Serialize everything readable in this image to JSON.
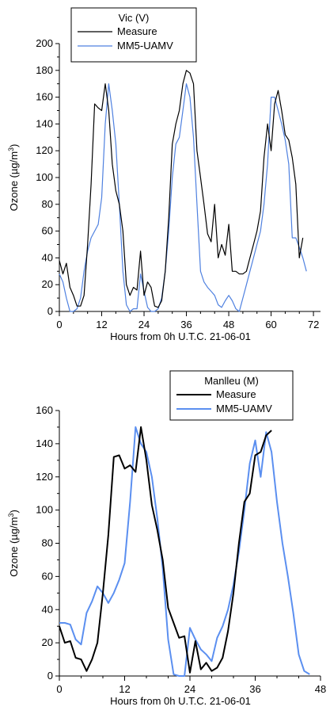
{
  "chart_data": [
    {
      "type": "line",
      "legend_title": "Vic (V)",
      "legend_position": "top-left",
      "xlabel": "Hours from 0h U.T.C. 21-06-01",
      "ylabel": "Ozone (µg/m³)",
      "ylabel_base": "Ozone (µg/m",
      "ylabel_sup": "3",
      "ylabel_end": ")",
      "xlim": [
        0,
        74
      ],
      "ylim": [
        0,
        200
      ],
      "xticks": [
        0,
        12,
        24,
        36,
        48,
        60,
        72
      ],
      "yticks": [
        0,
        20,
        40,
        60,
        80,
        100,
        120,
        140,
        160,
        180,
        200
      ],
      "series": [
        {
          "name": "Measure",
          "color": "#000000",
          "x": [
            0,
            1,
            2,
            3,
            4,
            5,
            6,
            7,
            8,
            9,
            10,
            11,
            12,
            13,
            14,
            15,
            16,
            17,
            18,
            19,
            20,
            21,
            22,
            23,
            24,
            25,
            26,
            27,
            28,
            29,
            30,
            31,
            32,
            33,
            34,
            35,
            36,
            37,
            38,
            39,
            40,
            41,
            42,
            43,
            44,
            45,
            46,
            47,
            48,
            49,
            50,
            51,
            52,
            53,
            54,
            55,
            56,
            57,
            58,
            59,
            60,
            61,
            62,
            63,
            64,
            65,
            66,
            67,
            68,
            69,
            70
          ],
          "y": [
            38,
            28,
            36,
            18,
            12,
            4,
            4,
            12,
            50,
            95,
            155,
            152,
            150,
            170,
            150,
            110,
            90,
            80,
            60,
            20,
            12,
            18,
            16,
            45,
            12,
            22,
            18,
            4,
            3,
            8,
            30,
            70,
            125,
            140,
            150,
            170,
            180,
            178,
            170,
            120,
            100,
            80,
            58,
            52,
            80,
            40,
            50,
            42,
            65,
            30,
            30,
            28,
            28,
            30,
            40,
            50,
            60,
            75,
            115,
            140,
            120,
            155,
            165,
            150,
            132,
            128,
            115,
            95,
            40,
            55,
            null
          ]
        },
        {
          "name": "MM5-UAMV",
          "color": "#4f81e0",
          "x": [
            0,
            1,
            2,
            3,
            4,
            5,
            6,
            7,
            8,
            9,
            10,
            11,
            12,
            13,
            14,
            15,
            16,
            17,
            18,
            19,
            20,
            21,
            22,
            23,
            24,
            25,
            26,
            27,
            28,
            29,
            30,
            31,
            32,
            33,
            34,
            35,
            36,
            37,
            38,
            39,
            40,
            41,
            42,
            43,
            44,
            45,
            46,
            47,
            48,
            49,
            50,
            51,
            52,
            53,
            54,
            55,
            56,
            57,
            58,
            59,
            60,
            61,
            62,
            63,
            64,
            65,
            66,
            67,
            68,
            69,
            70,
            71
          ],
          "y": [
            28,
            22,
            10,
            0,
            0,
            2,
            10,
            30,
            45,
            55,
            60,
            65,
            85,
            140,
            170,
            150,
            125,
            80,
            30,
            5,
            0,
            2,
            2,
            28,
            15,
            3,
            0,
            0,
            2,
            10,
            30,
            60,
            100,
            125,
            130,
            150,
            170,
            160,
            130,
            80,
            30,
            22,
            18,
            15,
            12,
            5,
            3,
            8,
            12,
            8,
            2,
            0,
            10,
            20,
            30,
            40,
            50,
            60,
            80,
            110,
            160,
            160,
            150,
            140,
            128,
            110,
            55,
            55,
            48,
            40,
            30,
            null
          ]
        }
      ]
    },
    {
      "type": "line",
      "legend_title": "Manlleu (M)",
      "legend_position": "top-right",
      "xlabel": "Hours from 0h U.T.C. 21-06-01",
      "ylabel": "Ozone (µg/m³)",
      "ylabel_base": "Ozone (µg/m",
      "ylabel_sup": "3",
      "ylabel_end": ")",
      "xlim": [
        0,
        48
      ],
      "ylim": [
        0,
        160
      ],
      "xticks": [
        0,
        12,
        24,
        36,
        48
      ],
      "yticks": [
        0,
        20,
        40,
        60,
        80,
        100,
        120,
        140,
        160
      ],
      "series": [
        {
          "name": "Measure",
          "color": "#000000",
          "x": [
            0,
            1,
            2,
            3,
            4,
            5,
            6,
            7,
            8,
            9,
            10,
            11,
            12,
            13,
            14,
            15,
            16,
            17,
            18,
            19,
            20,
            21,
            22,
            23,
            24,
            25,
            26,
            27,
            28,
            29,
            30,
            31,
            32,
            33,
            34,
            35,
            36,
            37,
            38,
            39
          ],
          "y": [
            30,
            20,
            21,
            11,
            10,
            3,
            10,
            20,
            50,
            85,
            132,
            133,
            125,
            127,
            123,
            150,
            130,
            103,
            88,
            70,
            41,
            32,
            23,
            24,
            2,
            21,
            4,
            8,
            3,
            5,
            11,
            27,
            50,
            80,
            105,
            110,
            133,
            135,
            145,
            148
          ]
        },
        {
          "name": "MM5-UAMV",
          "color": "#5b8ff0",
          "x": [
            0,
            1,
            2,
            3,
            4,
            5,
            6,
            7,
            8,
            9,
            10,
            11,
            12,
            13,
            14,
            15,
            16,
            17,
            18,
            19,
            20,
            21,
            22,
            23,
            24,
            25,
            26,
            27,
            28,
            29,
            30,
            31,
            32,
            33,
            34,
            35,
            36,
            37,
            38,
            39,
            40,
            41,
            42,
            43,
            44,
            45,
            46,
            47
          ],
          "y": [
            32,
            32,
            31,
            22,
            19,
            38,
            45,
            54,
            50,
            44,
            50,
            58,
            68,
            105,
            150,
            140,
            135,
            120,
            95,
            65,
            22,
            1,
            0,
            0,
            29,
            22,
            16,
            13,
            9,
            23,
            30,
            40,
            55,
            75,
            100,
            128,
            142,
            120,
            147,
            135,
            105,
            80,
            60,
            38,
            13,
            3,
            1,
            null
          ]
        }
      ]
    }
  ]
}
